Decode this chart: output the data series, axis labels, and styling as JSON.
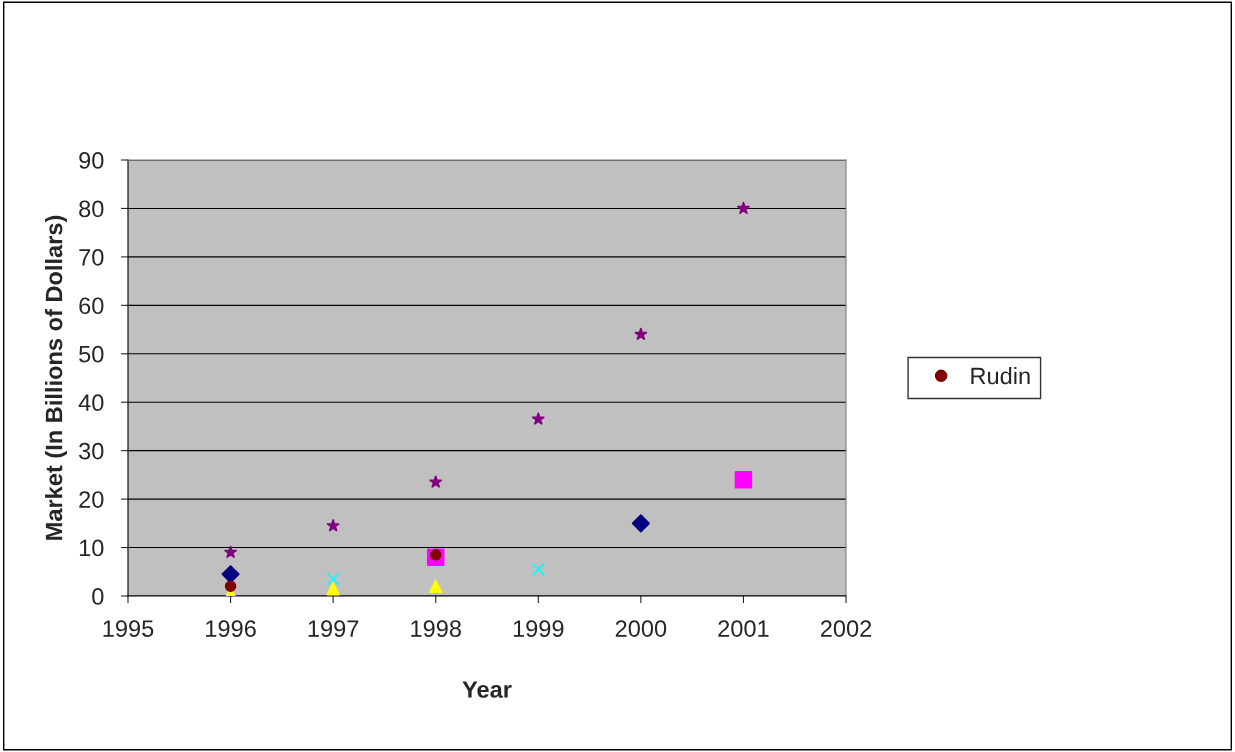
{
  "chart_data": {
    "type": "scatter",
    "xlabel": "Year",
    "ylabel": "Market (In Billions of Dollars)",
    "xlim": [
      1995,
      2002
    ],
    "xticks": [
      1995,
      1996,
      1997,
      1998,
      1999,
      2000,
      2001,
      2002
    ],
    "ylim": [
      0,
      90
    ],
    "yticks": [
      0,
      10,
      20,
      30,
      40,
      50,
      60,
      70,
      80,
      90
    ],
    "grid": "y",
    "legend": "right",
    "series": [
      {
        "color": "#000080",
        "marker": "diamond",
        "x": [
          1996,
          2000
        ],
        "values": [
          4.5,
          15
        ]
      },
      {
        "color": "#ff00ff",
        "marker": "square",
        "x": [
          1998,
          2001
        ],
        "values": [
          8,
          24
        ]
      },
      {
        "color": "#ffff00",
        "marker": "triangle",
        "x": [
          1996,
          1997,
          1998
        ],
        "values": [
          0.5,
          1.5,
          2
        ]
      },
      {
        "color": "#00ffff",
        "marker": "cross",
        "x": [
          1997,
          1999
        ],
        "values": [
          3.5,
          5.5
        ]
      },
      {
        "color": "#800080",
        "marker": "star",
        "x": [
          1996,
          1997,
          1998,
          1999,
          2000,
          2001
        ],
        "values": [
          9,
          14.5,
          23.5,
          36.5,
          54,
          80
        ]
      },
      {
        "name": "Rudin",
        "color": "#800000",
        "marker": "circle",
        "x": [
          1996,
          1998
        ],
        "values": [
          2,
          8.5
        ]
      }
    ]
  }
}
